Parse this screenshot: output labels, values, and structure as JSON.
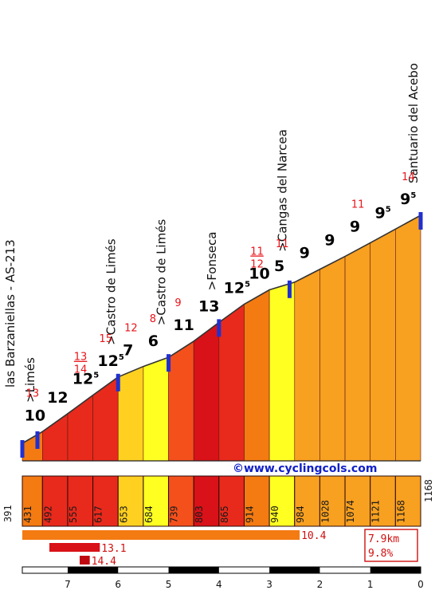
{
  "credit": "©www.cyclingcols.com",
  "colors": {
    "c7": "#ffff22",
    "c8": "#ffd020",
    "c9": "#f8a020",
    "c10": "#f47a12",
    "c11": "#f4501c",
    "c12": "#e82a1c",
    "c13": "#d81218",
    "c14": "#c00810",
    "marker": "#2030d0"
  },
  "chart_data": {
    "type": "area",
    "xlabel": "",
    "ylabel": "",
    "xlim": [
      7.9,
      0
    ],
    "ylim": [
      391,
      1168
    ],
    "x_ticks": [
      "7",
      "6",
      "5",
      "4",
      "3",
      "2",
      "1",
      "0"
    ],
    "start_altitude": "391",
    "end_altitude": "1168",
    "segments": [
      {
        "km_from": 7.9,
        "km_to": 7.5,
        "end_alt": "431",
        "grade": 10,
        "label": "10",
        "sup": "",
        "max": "13",
        "color": "c10"
      },
      {
        "km_from": 7.5,
        "km_to": 7.0,
        "end_alt": "492",
        "grade": 12,
        "label": "12",
        "sup": "",
        "max": "",
        "color": "c12"
      },
      {
        "km_from": 7.0,
        "km_to": 6.5,
        "end_alt": "555",
        "grade": 12.5,
        "label": "12",
        "sup": "5",
        "max": "13\n14",
        "color": "c12"
      },
      {
        "km_from": 6.5,
        "km_to": 6.0,
        "end_alt": "617",
        "grade": 12.5,
        "label": "12",
        "sup": "5",
        "max": "15",
        "color": "c12"
      },
      {
        "km_from": 6.0,
        "km_to": 5.5,
        "end_alt": "653",
        "grade": 7,
        "label": "7",
        "sup": "",
        "max": "12",
        "color": "c8"
      },
      {
        "km_from": 5.5,
        "km_to": 5.0,
        "end_alt": "684",
        "grade": 6,
        "label": "6",
        "sup": "",
        "max": "8",
        "color": "c7"
      },
      {
        "km_from": 5.0,
        "km_to": 4.5,
        "end_alt": "739",
        "grade": 11,
        "label": "11",
        "sup": "",
        "max": "9",
        "color": "c11"
      },
      {
        "km_from": 4.5,
        "km_to": 4.0,
        "end_alt": "803",
        "grade": 13,
        "label": "13",
        "sup": "",
        "max": "",
        "color": "c13"
      },
      {
        "km_from": 4.0,
        "km_to": 3.5,
        "end_alt": "865",
        "grade": 12.5,
        "label": "12",
        "sup": "5",
        "max": "",
        "color": "c12"
      },
      {
        "km_from": 3.5,
        "km_to": 3.0,
        "end_alt": "914",
        "grade": 10,
        "label": "10",
        "sup": "",
        "max": "11\n12",
        "color": "c10"
      },
      {
        "km_from": 3.0,
        "km_to": 2.5,
        "end_alt": "940",
        "grade": 5,
        "label": "5",
        "sup": "",
        "max": "11",
        "color": "c7"
      },
      {
        "km_from": 2.5,
        "km_to": 2.0,
        "end_alt": "984",
        "grade": 9,
        "label": "9",
        "sup": "",
        "max": "",
        "color": "c9"
      },
      {
        "km_from": 2.0,
        "km_to": 1.5,
        "end_alt": "1028",
        "grade": 9,
        "label": "9",
        "sup": "",
        "max": "",
        "color": "c9"
      },
      {
        "km_from": 1.5,
        "km_to": 1.0,
        "end_alt": "1074",
        "grade": 9,
        "label": "9",
        "sup": "",
        "max": "11",
        "color": "c9"
      },
      {
        "km_from": 1.0,
        "km_to": 0.5,
        "end_alt": "1121",
        "grade": 9.5,
        "label": "9",
        "sup": "5",
        "max": "",
        "color": "c9"
      },
      {
        "km_from": 0.5,
        "km_to": 0.0,
        "end_alt": "1168",
        "grade": 9.5,
        "label": "9",
        "sup": "5",
        "max": "14",
        "color": "c9"
      }
    ],
    "waypoints": [
      {
        "km": 7.9,
        "name": "las Barzaniellas - AS-213"
      },
      {
        "km": 7.6,
        "name": ">Limés"
      },
      {
        "km": 6.0,
        "name": ">Castro de Limés"
      },
      {
        "km": 5.0,
        "name": ">Castro de Limés"
      },
      {
        "km": 4.0,
        "name": ">Fonseca"
      },
      {
        "km": 2.6,
        "name": ">Cangas del Narcea"
      },
      {
        "km": 0.0,
        "name": "Santuario del Acebo"
      }
    ],
    "summary": {
      "distance": "7.9km",
      "average": "9.8%",
      "bars": [
        {
          "label": "10.4",
          "value": 10.4,
          "length_km": 5.5
        },
        {
          "label": "13.1",
          "value": 13.1,
          "length_km": 1.0
        },
        {
          "label": "14.4",
          "value": 14.4,
          "length_km": 0.2
        }
      ]
    }
  }
}
